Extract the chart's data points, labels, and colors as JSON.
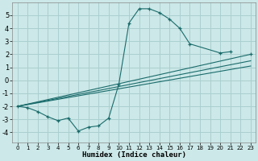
{
  "xlabel": "Humidex (Indice chaleur)",
  "bg_color": "#cce8e8",
  "grid_color": "#aacfcf",
  "line_color": "#1a6b6b",
  "xlim": [
    -0.5,
    23.5
  ],
  "ylim": [
    -4.8,
    6.0
  ],
  "yticks": [
    -4,
    -3,
    -2,
    -1,
    0,
    1,
    2,
    3,
    4,
    5
  ],
  "xticks": [
    0,
    1,
    2,
    3,
    4,
    5,
    6,
    7,
    8,
    9,
    10,
    11,
    12,
    13,
    14,
    15,
    16,
    17,
    18,
    19,
    20,
    21,
    22,
    23
  ],
  "curve_x": [
    0,
    1,
    2,
    3,
    4,
    5,
    6,
    7,
    8,
    9,
    10,
    11,
    12,
    13,
    14,
    15,
    16,
    17,
    20,
    21,
    22,
    23
  ],
  "curve_y": [
    -2.0,
    -2.1,
    -2.4,
    -2.8,
    -3.1,
    -2.9,
    -3.9,
    -3.6,
    -3.5,
    -2.9,
    -0.3,
    4.4,
    5.5,
    5.5,
    5.2,
    4.7,
    4.0,
    2.8,
    2.1,
    2.2,
    null,
    2.0
  ],
  "trend1_x": [
    0,
    23
  ],
  "trend1_y": [
    -2.0,
    2.0
  ],
  "trend2_x": [
    0,
    23
  ],
  "trend2_y": [
    -2.0,
    1.5
  ],
  "trend3_x": [
    0,
    23
  ],
  "trend3_y": [
    -2.0,
    1.1
  ]
}
